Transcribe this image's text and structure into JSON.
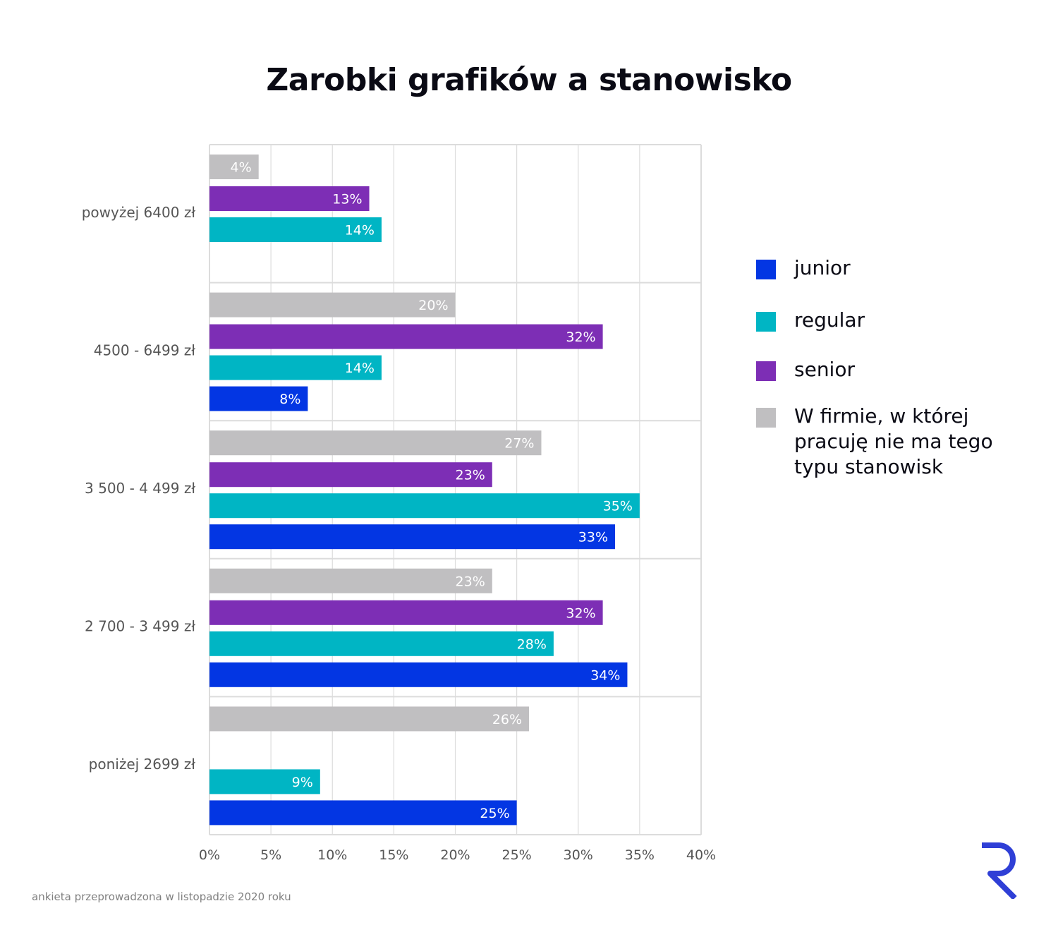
{
  "title": "Zarobki grafików a stanowisko",
  "footer": "ankieta przeprowadzona w listopadzie 2020 roku",
  "logo_text": "R",
  "colors": {
    "junior": "#0336e3",
    "regular": "#00b5c4",
    "senior": "#7d2eb5",
    "none": "#c0bfc1",
    "grid": "#dcdcdc",
    "axis_text": "#555555",
    "logo": "#2f3fd6"
  },
  "legend": [
    {
      "key": "junior",
      "label": "junior"
    },
    {
      "key": "regular",
      "label": "regular"
    },
    {
      "key": "senior",
      "label": "senior"
    },
    {
      "key": "none",
      "label": "W firmie, w której pracuję nie ma tego typu stanowisk"
    }
  ],
  "chart_data": {
    "type": "bar",
    "orientation": "horizontal",
    "title": "Zarobki grafików a stanowisko",
    "categories": [
      "powyżej 6400 zł",
      "4500 - 6499 zł",
      "3 500 - 4 499 zł",
      "2 700 - 3 499 zł",
      "poniżej 2699 zł"
    ],
    "series": [
      {
        "name": "W firmie, w której pracuję nie ma tego typu stanowisk",
        "key": "none",
        "values": [
          4,
          20,
          27,
          23,
          26
        ]
      },
      {
        "name": "senior",
        "key": "senior",
        "values": [
          13,
          32,
          23,
          32,
          null
        ]
      },
      {
        "name": "regular",
        "key": "regular",
        "values": [
          14,
          14,
          35,
          28,
          9
        ]
      },
      {
        "name": "junior",
        "key": "junior",
        "values": [
          null,
          8,
          33,
          34,
          25
        ]
      }
    ],
    "xlim": [
      0,
      40
    ],
    "xticks": [
      0,
      5,
      10,
      15,
      20,
      25,
      30,
      35,
      40
    ],
    "xtick_labels": [
      "0%",
      "5%",
      "10%",
      "15%",
      "20%",
      "25%",
      "30%",
      "35%",
      "40%"
    ],
    "value_suffix": "%",
    "grid": true,
    "legend_position": "right"
  }
}
